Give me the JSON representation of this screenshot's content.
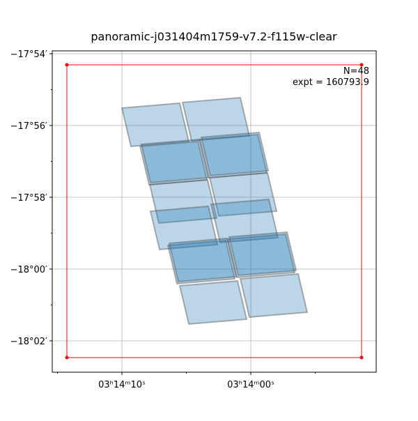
{
  "chart_data": {
    "type": "footprint",
    "title": "panoramic-j031404m1759-v7.2-f115w-clear",
    "annotations": [
      "N=48",
      "expt = 160793.9"
    ],
    "xlim": [
      48.564189,
      48.459459
    ],
    "ylim": [
      -18.0479,
      -17.8987
    ],
    "xticks": [
      {
        "value": 48.541667,
        "label": "03ʰ14ᵐ10ˢ"
      },
      {
        "value": 48.5,
        "label": "03ʰ14ᵐ00ˢ"
      }
    ],
    "xminorticks": [
      48.5625,
      48.520833,
      48.479167
    ],
    "yticks": [
      {
        "value": -17.9,
        "label": "−17°54′"
      },
      {
        "value": -17.933333,
        "label": "−17°56′"
      },
      {
        "value": -17.966667,
        "label": "−17°58′"
      },
      {
        "value": -18.0,
        "label": "−18°00′"
      },
      {
        "value": -18.033333,
        "label": "−18°02′"
      }
    ],
    "yminorticks": [
      -17.916667,
      -17.95,
      -17.983333,
      -18.016667
    ],
    "grid": true,
    "footprint_color": "#1f77b4",
    "box_color": "#ff0000",
    "box": {
      "x": [
        48.55946,
        48.46419,
        48.46419,
        48.55946
      ],
      "y": [
        -17.90518,
        -17.90518,
        -18.0411,
        -18.0411
      ]
    },
    "footprints": [
      {
        "x": [
          48.54167,
          48.52297,
          48.52004,
          48.53874
        ],
        "y": [
          -17.92524,
          -17.92298,
          -17.94078,
          -17.94304
        ]
      },
      {
        "x": [
          48.52207,
          48.50338,
          48.50045,
          48.51914
        ],
        "y": [
          -17.92265,
          -17.92039,
          -17.93819,
          -17.94045
        ]
      },
      {
        "x": [
          48.53581,
          48.51712,
          48.51419,
          48.53288
        ],
        "y": [
          -17.94304,
          -17.94078,
          -17.95858,
          -17.96084
        ]
      },
      {
        "x": [
          48.51644,
          48.49775,
          48.49482,
          48.51351
        ],
        "y": [
          -17.93981,
          -17.93754,
          -17.95534,
          -17.9576
        ]
      },
      {
        "x": [
          48.53536,
          48.51667,
          48.51374,
          48.53243
        ],
        "y": [
          -17.94207,
          -17.93981,
          -17.95761,
          -17.95987
        ]
      },
      {
        "x": [
          48.51599,
          48.4973,
          48.49437,
          48.51306
        ],
        "y": [
          -17.93883,
          -17.93657,
          -17.95437,
          -17.95663
        ]
      },
      {
        "x": [
          48.53266,
          48.51397,
          48.51104,
          48.52973
        ],
        "y": [
          -17.96084,
          -17.95858,
          -17.97638,
          -17.97864
        ]
      },
      {
        "x": [
          48.51329,
          48.4946,
          48.49167,
          48.51036
        ],
        "y": [
          -17.9576,
          -17.95534,
          -17.97314,
          -17.9754
        ]
      },
      {
        "x": [
          48.53243,
          48.51374,
          48.51081,
          48.5295
        ],
        "y": [
          -17.97314,
          -17.97087,
          -17.98867,
          -17.99094
        ]
      },
      {
        "x": [
          48.51284,
          48.49415,
          48.49122,
          48.50991
        ],
        "y": [
          -17.9699,
          -17.96764,
          -17.98544,
          -17.9877
        ]
      },
      {
        "x": [
          48.5268,
          48.50811,
          48.50518,
          48.52387
        ],
        "y": [
          -17.989,
          -17.98673,
          -18.00453,
          -18.0068
        ]
      },
      {
        "x": [
          48.50743,
          48.48874,
          48.48581,
          48.5045
        ],
        "y": [
          -17.98608,
          -17.98382,
          -18.00162,
          -18.00388
        ]
      },
      {
        "x": [
          48.52635,
          48.50766,
          48.50473,
          48.52342
        ],
        "y": [
          -17.98803,
          -17.98576,
          -18.00356,
          -18.00583
        ]
      },
      {
        "x": [
          48.50698,
          48.48829,
          48.48536,
          48.50405
        ],
        "y": [
          -17.98511,
          -17.98285,
          -18.00065,
          -18.00291
        ]
      },
      {
        "x": [
          48.52297,
          48.50428,
          48.50135,
          48.52004
        ],
        "y": [
          -18.00777,
          -18.0055,
          -18.0233,
          -18.02556
        ]
      },
      {
        "x": [
          48.50338,
          48.48469,
          48.48176,
          48.50045
        ],
        "y": [
          -18.00453,
          -18.00226,
          -18.02006,
          -18.02233
        ]
      }
    ]
  }
}
